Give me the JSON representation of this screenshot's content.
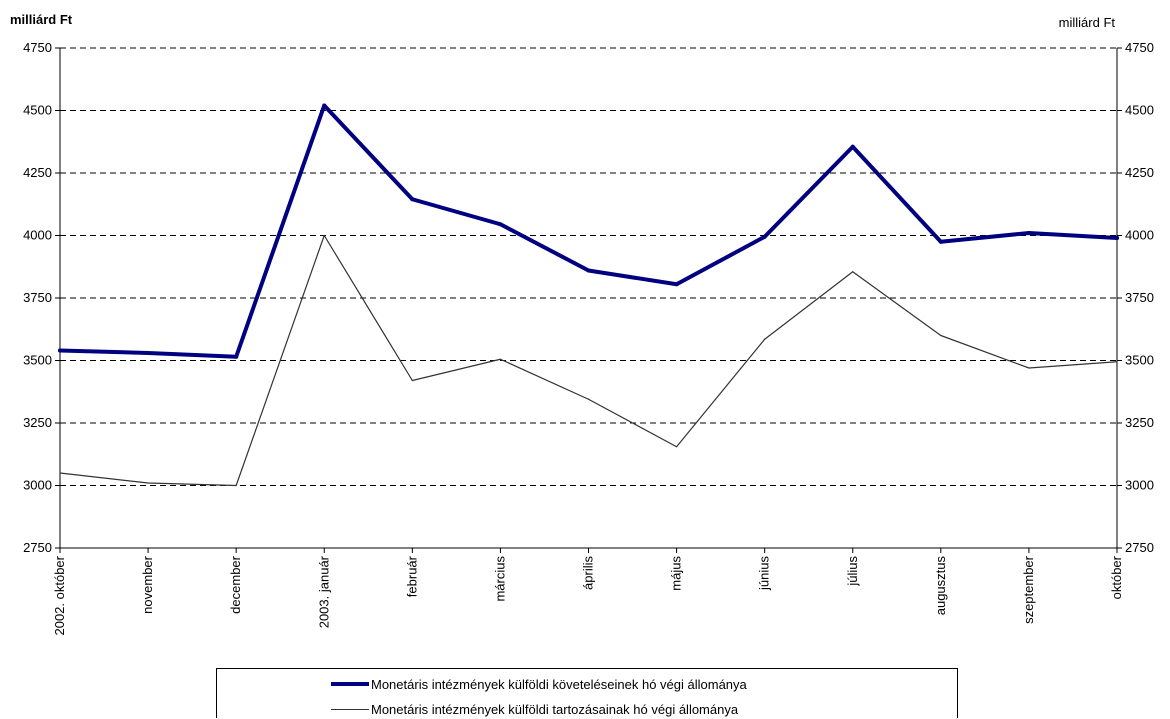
{
  "chart_data": {
    "type": "line",
    "title": "",
    "ylabel_left": "milliárd Ft",
    "ylabel_right": "milliárd Ft",
    "ylim": [
      2750,
      4750
    ],
    "yticks": [
      2750,
      3000,
      3250,
      3500,
      3750,
      4000,
      4250,
      4500,
      4750
    ],
    "ytick_labels": [
      "2750",
      "3000",
      "3250",
      "3500",
      "3750",
      "4000",
      "4250",
      "4500",
      "4750"
    ],
    "grid": "horizontal dashed",
    "legend_position": "bottom",
    "categories": [
      "2002. október",
      "november",
      "december",
      "2003. január",
      "február",
      "március",
      "április",
      "május",
      "június",
      "július",
      "augusztus",
      "szeptember",
      "október"
    ],
    "series": [
      {
        "name": "Monetáris intézmények külföldi követeléseinek hó végi állománya",
        "color": "#000080",
        "style": "thick",
        "values": [
          3540,
          3530,
          3515,
          4520,
          4145,
          4045,
          3860,
          3805,
          3995,
          4355,
          3975,
          4010,
          3990
        ]
      },
      {
        "name": "Monetáris intézmények külföldi tartozásainak hó végi állománya",
        "color": "#333333",
        "style": "thin",
        "values": [
          3050,
          3010,
          3000,
          4000,
          3420,
          3505,
          3345,
          3155,
          3585,
          3855,
          3600,
          3470,
          3495
        ]
      }
    ]
  }
}
